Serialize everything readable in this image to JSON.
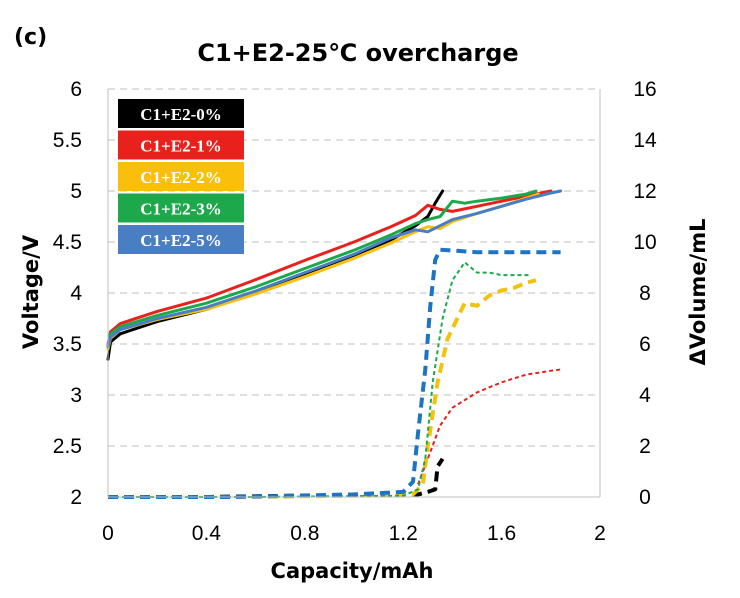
{
  "panel_label": "(c)",
  "colors": {
    "black": "#000000",
    "red": "#e8211d",
    "yellow": "#f9bf0b",
    "green": "#1da84b",
    "blue": "#4a7ec3",
    "grid": "#cccccc",
    "volume_blue": "#1c74c2",
    "volume_yellow": "#f2c211",
    "volume_green": "#1da84b",
    "volume_red": "#e8211d",
    "volume_black": "#000000"
  },
  "chart_data": {
    "type": "line",
    "title": "C1+E2-25℃ overcharge",
    "xlabel": "Capacity/mAh",
    "ylabel": "Voltage/V",
    "y2label": "ΔVolume/mL",
    "xlim": [
      0,
      2
    ],
    "ylim": [
      2,
      6
    ],
    "y2lim": [
      0,
      16
    ],
    "xticks": [
      "0",
      "0.4",
      "0.8",
      "1.2",
      "1.6",
      "2"
    ],
    "xtick_values": [
      0,
      0.4,
      0.8,
      1.2,
      1.6,
      2
    ],
    "yticks": [
      "2",
      "2.5",
      "3",
      "3.5",
      "4",
      "4.5",
      "5",
      "5.5",
      "6"
    ],
    "ytick_values": [
      2,
      2.5,
      3,
      3.5,
      4,
      4.5,
      5,
      5.5,
      6
    ],
    "y2ticks": [
      "0",
      "2",
      "4",
      "6",
      "8",
      "10",
      "12",
      "14",
      "16"
    ],
    "y2tick_values": [
      0,
      2,
      4,
      6,
      8,
      10,
      12,
      14,
      16
    ],
    "grid": "horizontal dashed",
    "legend_position": "top-left",
    "voltage_series": [
      {
        "name": "C1+E2-0%",
        "color": "black",
        "points": [
          [
            0.0,
            3.35
          ],
          [
            0.01,
            3.52
          ],
          [
            0.05,
            3.6
          ],
          [
            0.2,
            3.72
          ],
          [
            0.4,
            3.84
          ],
          [
            0.6,
            4.0
          ],
          [
            0.8,
            4.18
          ],
          [
            1.0,
            4.36
          ],
          [
            1.15,
            4.52
          ],
          [
            1.25,
            4.66
          ],
          [
            1.3,
            4.75
          ],
          [
            1.33,
            4.88
          ],
          [
            1.36,
            5.0
          ]
        ]
      },
      {
        "name": "C1+E2-1%",
        "color": "red",
        "points": [
          [
            0.0,
            3.5
          ],
          [
            0.01,
            3.62
          ],
          [
            0.05,
            3.7
          ],
          [
            0.2,
            3.82
          ],
          [
            0.4,
            3.95
          ],
          [
            0.6,
            4.13
          ],
          [
            0.8,
            4.32
          ],
          [
            1.0,
            4.5
          ],
          [
            1.15,
            4.65
          ],
          [
            1.25,
            4.76
          ],
          [
            1.3,
            4.86
          ],
          [
            1.35,
            4.82
          ],
          [
            1.4,
            4.8
          ],
          [
            1.5,
            4.85
          ],
          [
            1.6,
            4.9
          ],
          [
            1.7,
            4.95
          ],
          [
            1.8,
            5.0
          ]
        ]
      },
      {
        "name": "C1+E2-2%",
        "color": "yellow",
        "points": [
          [
            0.0,
            3.45
          ],
          [
            0.01,
            3.56
          ],
          [
            0.05,
            3.64
          ],
          [
            0.2,
            3.74
          ],
          [
            0.4,
            3.84
          ],
          [
            0.6,
            3.99
          ],
          [
            0.8,
            4.16
          ],
          [
            1.0,
            4.34
          ],
          [
            1.15,
            4.49
          ],
          [
            1.25,
            4.6
          ],
          [
            1.3,
            4.65
          ],
          [
            1.35,
            4.63
          ],
          [
            1.4,
            4.7
          ],
          [
            1.5,
            4.78
          ],
          [
            1.6,
            4.85
          ],
          [
            1.7,
            4.93
          ],
          [
            1.75,
            4.97
          ]
        ]
      },
      {
        "name": "C1+E2-3%",
        "color": "green",
        "points": [
          [
            0.0,
            3.47
          ],
          [
            0.01,
            3.6
          ],
          [
            0.05,
            3.67
          ],
          [
            0.2,
            3.78
          ],
          [
            0.4,
            3.9
          ],
          [
            0.6,
            4.06
          ],
          [
            0.8,
            4.24
          ],
          [
            1.0,
            4.42
          ],
          [
            1.15,
            4.57
          ],
          [
            1.25,
            4.68
          ],
          [
            1.3,
            4.72
          ],
          [
            1.35,
            4.75
          ],
          [
            1.4,
            4.9
          ],
          [
            1.45,
            4.88
          ],
          [
            1.5,
            4.9
          ],
          [
            1.6,
            4.93
          ],
          [
            1.7,
            4.97
          ],
          [
            1.74,
            5.0
          ]
        ]
      },
      {
        "name": "C1+E2-5%",
        "color": "blue",
        "points": [
          [
            0.0,
            3.48
          ],
          [
            0.01,
            3.57
          ],
          [
            0.05,
            3.64
          ],
          [
            0.2,
            3.75
          ],
          [
            0.4,
            3.86
          ],
          [
            0.6,
            4.02
          ],
          [
            0.8,
            4.2
          ],
          [
            1.0,
            4.38
          ],
          [
            1.15,
            4.54
          ],
          [
            1.25,
            4.62
          ],
          [
            1.3,
            4.6
          ],
          [
            1.35,
            4.66
          ],
          [
            1.4,
            4.72
          ],
          [
            1.5,
            4.78
          ],
          [
            1.6,
            4.85
          ],
          [
            1.7,
            4.92
          ],
          [
            1.8,
            4.98
          ],
          [
            1.84,
            5.0
          ]
        ]
      }
    ],
    "volume_series": [
      {
        "name": "C1+E2-0% ΔVolume",
        "color": "volume_black",
        "dash": "dashed",
        "points": [
          [
            0.0,
            0.0
          ],
          [
            0.4,
            0.0
          ],
          [
            0.6,
            0.03
          ],
          [
            0.8,
            0.05
          ],
          [
            1.0,
            0.08
          ],
          [
            1.1,
            0.1
          ],
          [
            1.2,
            0.12
          ],
          [
            1.26,
            0.1
          ],
          [
            1.3,
            0.2
          ],
          [
            1.33,
            0.3
          ],
          [
            1.34,
            1.2
          ],
          [
            1.36,
            1.5
          ]
        ]
      },
      {
        "name": "C1+E2-1% ΔVolume",
        "color": "volume_red",
        "dash": "fine",
        "points": [
          [
            1.26,
            0.5
          ],
          [
            1.3,
            1.5
          ],
          [
            1.35,
            2.8
          ],
          [
            1.4,
            3.5
          ],
          [
            1.5,
            4.1
          ],
          [
            1.6,
            4.5
          ],
          [
            1.7,
            4.8
          ],
          [
            1.8,
            4.95
          ],
          [
            1.84,
            5.0
          ]
        ]
      },
      {
        "name": "C1+E2-2% ΔVolume",
        "color": "volume_yellow",
        "dash": "dashed",
        "points": [
          [
            0.0,
            0.0
          ],
          [
            0.5,
            0.0
          ],
          [
            1.0,
            0.05
          ],
          [
            1.24,
            0.1
          ],
          [
            1.28,
            0.5
          ],
          [
            1.3,
            2.0
          ],
          [
            1.34,
            4.5
          ],
          [
            1.38,
            6.2
          ],
          [
            1.42,
            7.0
          ],
          [
            1.45,
            7.6
          ],
          [
            1.5,
            7.5
          ],
          [
            1.55,
            7.9
          ],
          [
            1.6,
            8.1
          ],
          [
            1.65,
            8.2
          ],
          [
            1.7,
            8.4
          ],
          [
            1.74,
            8.5
          ]
        ]
      },
      {
        "name": "C1+E2-3% ΔVolume",
        "color": "volume_green",
        "dash": "fine",
        "points": [
          [
            0.0,
            0.0
          ],
          [
            0.6,
            0.0
          ],
          [
            1.2,
            0.05
          ],
          [
            1.26,
            0.3
          ],
          [
            1.29,
            1.5
          ],
          [
            1.32,
            4.5
          ],
          [
            1.36,
            7.0
          ],
          [
            1.4,
            8.5
          ],
          [
            1.45,
            9.2
          ],
          [
            1.5,
            8.8
          ],
          [
            1.55,
            8.8
          ],
          [
            1.6,
            8.7
          ],
          [
            1.72,
            8.7
          ]
        ]
      },
      {
        "name": "C1+E2-5% ΔVolume",
        "color": "volume_blue",
        "dash": "dashed",
        "points": [
          [
            0.0,
            0.0
          ],
          [
            0.5,
            0.0
          ],
          [
            1.0,
            0.1
          ],
          [
            1.2,
            0.2
          ],
          [
            1.24,
            0.6
          ],
          [
            1.26,
            2.5
          ],
          [
            1.29,
            5.0
          ],
          [
            1.31,
            7.5
          ],
          [
            1.33,
            9.3
          ],
          [
            1.35,
            9.7
          ],
          [
            1.5,
            9.6
          ],
          [
            1.6,
            9.6
          ],
          [
            1.7,
            9.6
          ],
          [
            1.84,
            9.6
          ]
        ]
      }
    ]
  }
}
